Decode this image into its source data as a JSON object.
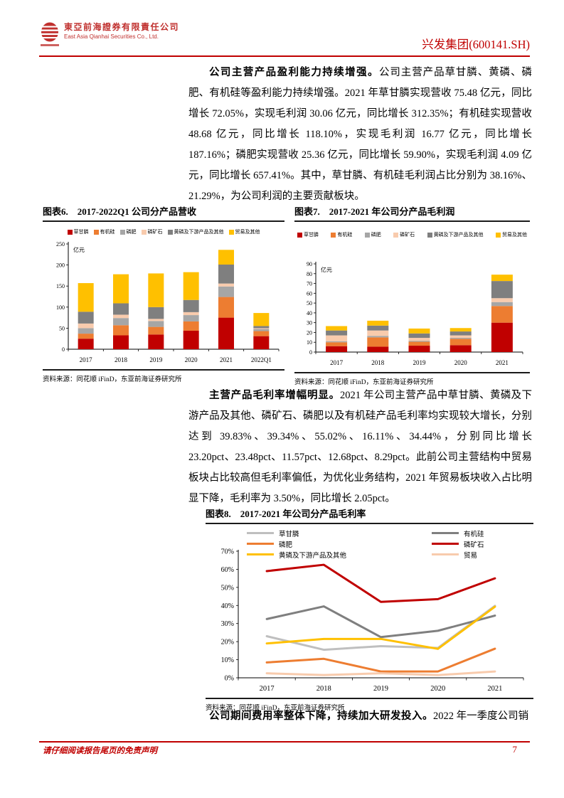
{
  "header": {
    "company_cn": "東亞前海證券有限責任公司",
    "company_en": "East Asia Qianhai Securities Co., Ltd.",
    "stock_title": "兴发集团(600141.SH)"
  },
  "paragraphs": [
    {
      "lead": "公司主营产品盈利能力持续增强。",
      "body": "公司主营产品草甘膦、黄磷、磷肥、有机硅等盈利能力持续增强。2021 年草甘膦实现营收 75.48 亿元，同比增长 72.05%，实现毛利润 30.06 亿元，同比增长 312.35%；有机硅实现营收 48.68 亿元，同比增长 118.10%，实现毛利润 16.77 亿元，同比增长 187.16%；磷肥实现营收 25.36 亿元，同比增长 59.90%，实现毛利润 4.09 亿元，同比增长 657.41%。其中，草甘膦、有机硅毛利润占比分别为 38.16%、21.29%，为公司利润的主要贡献板块。"
    },
    {
      "lead": "主营产品毛利率增幅明显。",
      "body": "2021 年公司主营产品中草甘膦、黄磷及下游产品及其他、磷矿石、磷肥以及有机硅产品毛利率均实现较大增长，分别达到 39.83%、39.34%、55.02%、16.11%、34.44%，分别同比增长 23.20pct、23.48pct、11.57pct、12.68pct、8.29pct。此前公司主营结构中贸易板块占比较高但毛利率偏低，为优化业务结构，2021 年贸易板块收入占比明显下降，毛利率为 3.50%，同比增长 2.05pct。"
    },
    {
      "lead": "公司期间费用率整体下降，持续加大研发投入。",
      "body": "2022 年一季度公司销"
    }
  ],
  "figures": [
    {
      "label": "图表6.",
      "title": "2017-2022Q1 公司分产品营收",
      "source": "资料来源：同花顺 iFinD，东亚前海证券研究所"
    },
    {
      "label": "图表7.",
      "title": "2017-2021 年公司分产品毛利润",
      "source": "资料来源：同花顺 iFinD，东亚前海证券研究所"
    },
    {
      "label": "图表8.",
      "title": "2017-2021 年公司分产品毛利率",
      "source": "资料来源：同花顺 iFinD，东亚前海证券研究所"
    }
  ],
  "chart_data": [
    {
      "type": "bar",
      "stacked": true,
      "title": "图表6. 2017-2022Q1 公司分产品营收",
      "unit": "亿元",
      "categories": [
        "2017",
        "2018",
        "2019",
        "2020",
        "2021",
        "2022Q1"
      ],
      "series": [
        {
          "name": "草甘膦",
          "color": "#c00000",
          "values": [
            25,
            33,
            35,
            44,
            75,
            31
          ]
        },
        {
          "name": "有机硅",
          "color": "#ed7d31",
          "values": [
            12,
            24,
            18,
            22,
            49,
            12
          ]
        },
        {
          "name": "磷肥",
          "color": "#a6a6a6",
          "values": [
            13,
            17,
            14,
            15,
            25,
            5
          ]
        },
        {
          "name": "磷矿石",
          "color": "#f8cbad",
          "values": [
            11,
            8,
            5,
            7,
            7,
            2
          ]
        },
        {
          "name": "黄磷及下游产品及其他",
          "color": "#7f7f7f",
          "values": [
            28,
            27,
            28,
            29,
            45,
            5
          ]
        },
        {
          "name": "贸易及其他",
          "color": "#ffc000",
          "values": [
            68,
            69,
            80,
            66,
            35,
            31
          ]
        }
      ],
      "ylim": [
        0,
        250
      ],
      "ytick": 50,
      "grid": false,
      "legend_position": "top"
    },
    {
      "type": "bar",
      "stacked": true,
      "title": "图表7. 2017-2021 年公司分产品毛利润",
      "unit": "亿元",
      "categories": [
        "2017",
        "2018",
        "2019",
        "2020",
        "2021"
      ],
      "series": [
        {
          "name": "草甘膦",
          "color": "#c00000",
          "values": [
            6,
            5.5,
            6.5,
            7,
            30
          ]
        },
        {
          "name": "有机硅",
          "color": "#ed7d31",
          "values": [
            4,
            9.5,
            4,
            6.5,
            17
          ]
        },
        {
          "name": "磷肥",
          "color": "#a6a6a6",
          "values": [
            1,
            1.5,
            1,
            1,
            4
          ]
        },
        {
          "name": "磷矿石",
          "color": "#f8cbad",
          "values": [
            6,
            5.5,
            3,
            2.5,
            4
          ]
        },
        {
          "name": "黄磷及下游产品及其他",
          "color": "#7f7f7f",
          "values": [
            5,
            5,
            4.5,
            4,
            17.5
          ]
        },
        {
          "name": "贸易及其他",
          "color": "#ffc000",
          "values": [
            4.5,
            5,
            5,
            3.5,
            6.5
          ]
        }
      ],
      "ylim": [
        0,
        90
      ],
      "ytick": 10,
      "grid": false,
      "legend_position": "top"
    },
    {
      "type": "line",
      "title": "图表8. 2017-2021 年公司分产品毛利率",
      "unit": "%",
      "categories": [
        "2017",
        "2018",
        "2019",
        "2020",
        "2021"
      ],
      "series": [
        {
          "name": "草甘膦",
          "color": "#bfbfbf",
          "values": [
            23,
            15.5,
            17.5,
            16.5,
            39.8
          ]
        },
        {
          "name": "有机硅",
          "color": "#7f7f7f",
          "values": [
            32.5,
            39.5,
            22.5,
            26,
            34.4
          ]
        },
        {
          "name": "磷肥",
          "color": "#ed7d31",
          "values": [
            8.5,
            10.5,
            3.5,
            3.5,
            16.1
          ]
        },
        {
          "name": "磷矿石",
          "color": "#c00000",
          "values": [
            59,
            62.5,
            42,
            43.5,
            55
          ]
        },
        {
          "name": "黄磷及下游产品及其他",
          "color": "#ffc000",
          "values": [
            19,
            21.5,
            21.5,
            16,
            39.3
          ]
        },
        {
          "name": "贸易",
          "color": "#f8cbad",
          "values": [
            2.5,
            1.5,
            2.5,
            1.5,
            3.5
          ]
        }
      ],
      "ylim": [
        0,
        70
      ],
      "ytick": 10,
      "grid": false,
      "legend_position": "top"
    }
  ],
  "colors": {
    "accent_red": "#c00000",
    "rule_black": "#1a1a1a"
  },
  "footer": {
    "disclaimer": "请仔细阅读报告尾页的免责声明",
    "page": "7"
  }
}
